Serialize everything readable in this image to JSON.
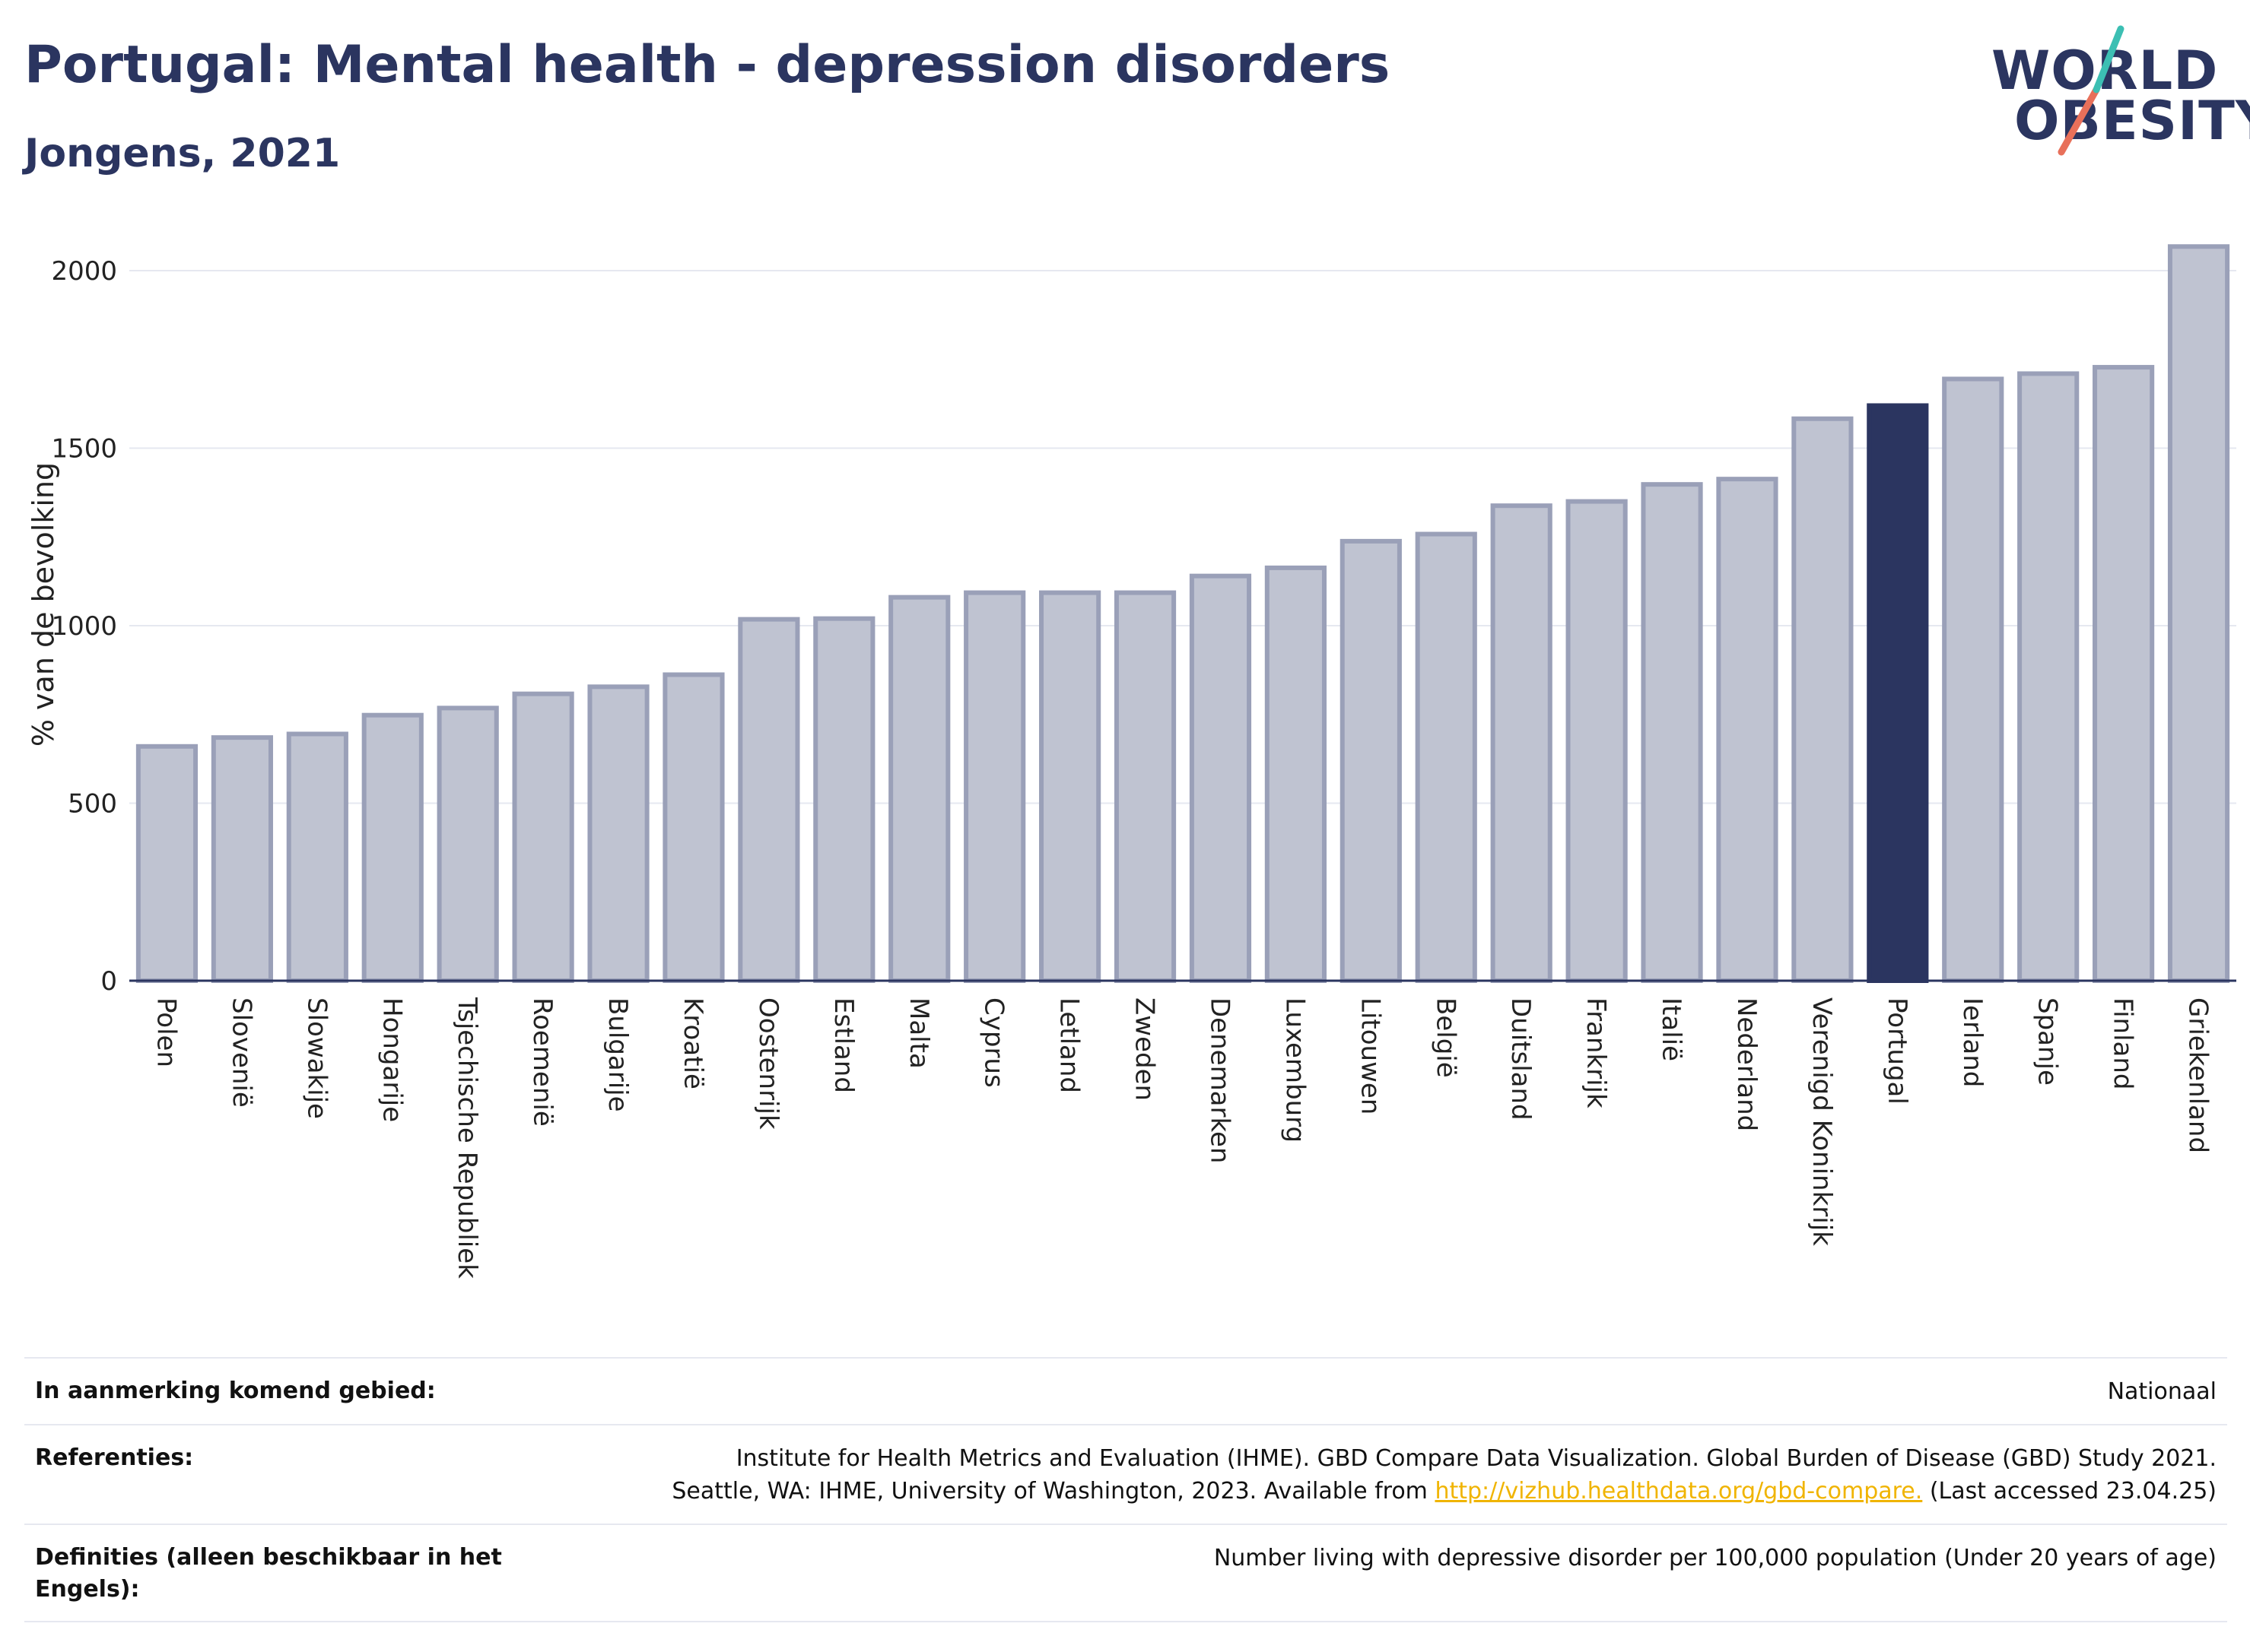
{
  "header": {
    "title": "Portugal: Mental health - depression disorders",
    "subtitle": "Jongens, 2021"
  },
  "logo": {
    "line1": "WORLD",
    "line2": "OBESITY"
  },
  "chart_data": {
    "type": "bar",
    "title": "Portugal: Mental health - depression disorders",
    "subtitle": "Jongens, 2021",
    "ylabel": "% van de bevolking",
    "xlabel": "",
    "ylim": [
      0,
      2120
    ],
    "yticks": [
      0,
      500,
      1000,
      1500,
      2000
    ],
    "grid": true,
    "highlight": "Portugal",
    "colors": {
      "bar": "#bfc3d1",
      "bar_edge": "#9aa0b8",
      "highlight": "#2b3560",
      "grid": "#e6e8f0"
    },
    "categories": [
      "Polen",
      "Slovenië",
      "Slowakije",
      "Hongarije",
      "Tsjechische Republiek",
      "Roemenië",
      "Bulgarije",
      "Kroatië",
      "Oostenrijk",
      "Estland",
      "Malta",
      "Cyprus",
      "Letland",
      "Zweden",
      "Denemarken",
      "Luxemburg",
      "Litouwen",
      "België",
      "Duitsland",
      "Frankrijk",
      "Italië",
      "Nederland",
      "Verenigd Koninkrijk",
      "Portugal",
      "Ierland",
      "Spanje",
      "Finland",
      "Griekenland"
    ],
    "values": [
      660,
      685,
      695,
      748,
      768,
      808,
      828,
      862,
      1018,
      1020,
      1080,
      1093,
      1093,
      1093,
      1140,
      1163,
      1238,
      1258,
      1338,
      1350,
      1398,
      1413,
      1583,
      1620,
      1695,
      1710,
      1728,
      2068
    ]
  },
  "info": {
    "rows": [
      {
        "label": "In aanmerking komend gebied:",
        "value": "Nationaal"
      },
      {
        "label": "Referenties:",
        "line1": "Institute for Health Metrics and Evaluation (IHME). GBD Compare Data Visualization. Global Burden of Disease (GBD) Study 2021.",
        "line2_pre": "Seattle, WA: IHME, University of Washington, 2023. Available from ",
        "link": "http://vizhub.healthdata.org/gbd-compare.",
        "line2_post": " (Last accessed 23.04.25)"
      },
      {
        "label": "Definities (alleen beschikbaar in het Engels):",
        "value": "Number living with depressive disorder per 100,000 population (Under 20 years of age)"
      }
    ]
  }
}
